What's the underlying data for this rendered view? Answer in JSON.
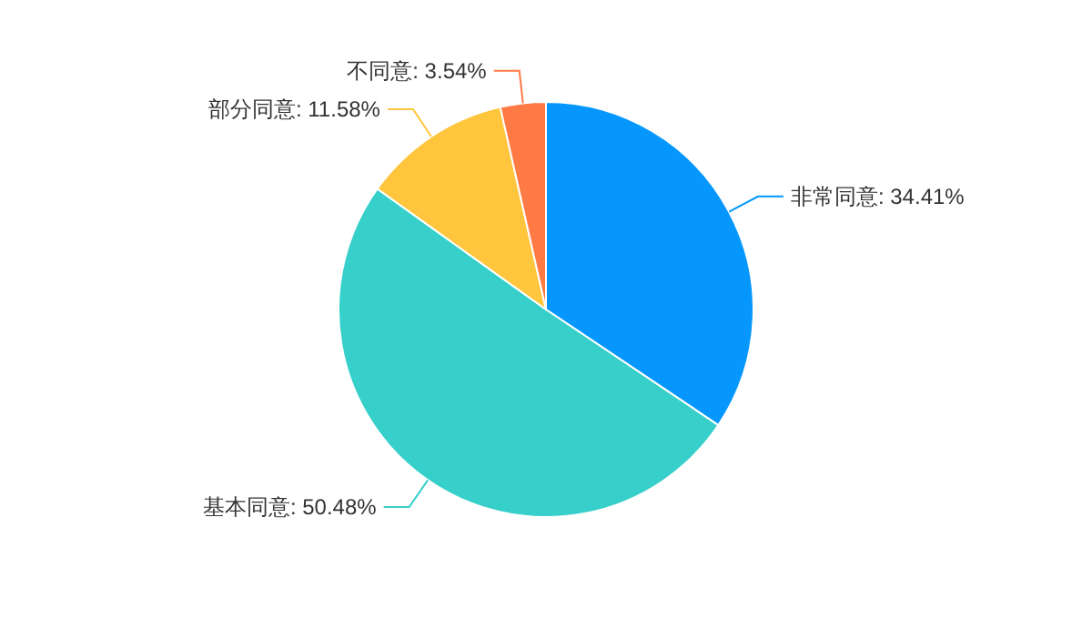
{
  "chart_data": {
    "type": "pie",
    "categories": [
      "非常同意",
      "基本同意",
      "部分同意",
      "不同意"
    ],
    "values": [
      34.41,
      50.48,
      11.58,
      3.54
    ],
    "value_labels": [
      "34.41%",
      "50.48%",
      "11.58%",
      "3.54%"
    ],
    "colors": [
      "#0597fe",
      "#36cfc9",
      "#ffc53d",
      "#ff7a45"
    ],
    "legend": false
  }
}
